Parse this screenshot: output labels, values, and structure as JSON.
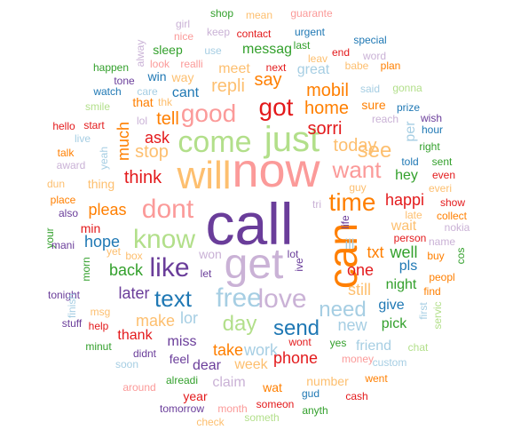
{
  "palette": {
    "purple": "#6a3d9a",
    "pink": "#fb9a99",
    "lilac": "#cab2d6",
    "orange": "#ff7f00",
    "lightorange": "#fdbf6f",
    "red": "#e31a1c",
    "green": "#33a02c",
    "lightgreen": "#b2df8a",
    "blue": "#1f78b4",
    "lightblue": "#a6cee3"
  },
  "words": [
    {
      "text": "call",
      "color": "purple"
    },
    {
      "text": "now",
      "color": "pink"
    },
    {
      "text": "get",
      "color": "lilac"
    },
    {
      "text": "can",
      "color": "orange"
    },
    {
      "text": "will",
      "color": "lightorange"
    },
    {
      "text": "just",
      "color": "lightgreen"
    },
    {
      "text": "come",
      "color": "lightgreen"
    },
    {
      "text": "free",
      "color": "lightblue"
    },
    {
      "text": "love",
      "color": "lilac"
    },
    {
      "text": "dont",
      "color": "pink"
    },
    {
      "text": "know",
      "color": "lightgreen"
    },
    {
      "text": "like",
      "color": "purple"
    },
    {
      "text": "good",
      "color": "pink"
    },
    {
      "text": "got",
      "color": "red"
    },
    {
      "text": "time",
      "color": "orange"
    },
    {
      "text": "want",
      "color": "pink"
    },
    {
      "text": "text",
      "color": "blue"
    },
    {
      "text": "day",
      "color": "lightgreen"
    },
    {
      "text": "send",
      "color": "blue"
    },
    {
      "text": "need",
      "color": "lightblue"
    },
    {
      "text": "see",
      "color": "lightorange"
    },
    {
      "text": "sorri",
      "color": "red"
    },
    {
      "text": "home",
      "color": "orange"
    },
    {
      "text": "mobil",
      "color": "orange"
    },
    {
      "text": "repli",
      "color": "lightorange"
    },
    {
      "text": "say",
      "color": "orange"
    },
    {
      "text": "today",
      "color": "lightorange"
    },
    {
      "text": "tell",
      "color": "orange"
    },
    {
      "text": "think",
      "color": "red"
    },
    {
      "text": "stop",
      "color": "lightorange"
    },
    {
      "text": "ask",
      "color": "red"
    },
    {
      "text": "much",
      "color": "orange"
    },
    {
      "text": "pleas",
      "color": "orange"
    },
    {
      "text": "hope",
      "color": "blue"
    },
    {
      "text": "back",
      "color": "green"
    },
    {
      "text": "later",
      "color": "purple"
    },
    {
      "text": "make",
      "color": "lightorange"
    },
    {
      "text": "lor",
      "color": "lightblue"
    },
    {
      "text": "take",
      "color": "orange"
    },
    {
      "text": "work",
      "color": "lightblue"
    },
    {
      "text": "phone",
      "color": "red"
    },
    {
      "text": "new",
      "color": "lightblue"
    },
    {
      "text": "still",
      "color": "lightorange"
    },
    {
      "text": "one",
      "color": "red"
    },
    {
      "text": "txt",
      "color": "orange"
    },
    {
      "text": "well",
      "color": "green"
    },
    {
      "text": "ill",
      "color": "lightblue"
    },
    {
      "text": "happi",
      "color": "red"
    },
    {
      "text": "hey",
      "color": "green"
    },
    {
      "text": "wait",
      "color": "lightorange"
    },
    {
      "text": "pls",
      "color": "blue"
    },
    {
      "text": "night",
      "color": "green"
    },
    {
      "text": "give",
      "color": "blue"
    },
    {
      "text": "pick",
      "color": "green"
    },
    {
      "text": "week",
      "color": "lightorange"
    },
    {
      "text": "miss",
      "color": "purple"
    },
    {
      "text": "thank",
      "color": "red"
    },
    {
      "text": "dear",
      "color": "purple"
    },
    {
      "text": "claim",
      "color": "lilac"
    },
    {
      "text": "wat",
      "color": "orange"
    },
    {
      "text": "number",
      "color": "lightorange"
    },
    {
      "text": "friend",
      "color": "lightblue"
    },
    {
      "text": "meet",
      "color": "lightorange"
    },
    {
      "text": "messag",
      "color": "green"
    },
    {
      "text": "great",
      "color": "lightblue"
    },
    {
      "text": "sleep",
      "color": "green"
    },
    {
      "text": "contact",
      "color": "red"
    },
    {
      "text": "keep",
      "color": "lilac"
    },
    {
      "text": "shop",
      "color": "green"
    },
    {
      "text": "mean",
      "color": "lightorange"
    },
    {
      "text": "guarante",
      "color": "pink"
    },
    {
      "text": "girl",
      "color": "lilac"
    },
    {
      "text": "nice",
      "color": "pink"
    },
    {
      "text": "use",
      "color": "lightblue"
    },
    {
      "text": "urgent",
      "color": "blue"
    },
    {
      "text": "last",
      "color": "green"
    },
    {
      "text": "special",
      "color": "blue"
    },
    {
      "text": "end",
      "color": "red"
    },
    {
      "text": "word",
      "color": "lilac"
    },
    {
      "text": "leav",
      "color": "lightorange"
    },
    {
      "text": "plan",
      "color": "orange"
    },
    {
      "text": "babe",
      "color": "lightorange"
    },
    {
      "text": "next",
      "color": "red"
    },
    {
      "text": "realli",
      "color": "pink"
    },
    {
      "text": "look",
      "color": "pink"
    },
    {
      "text": "way",
      "color": "lightorange"
    },
    {
      "text": "win",
      "color": "blue"
    },
    {
      "text": "happen",
      "color": "green"
    },
    {
      "text": "alway",
      "color": "lilac"
    },
    {
      "text": "tone",
      "color": "purple"
    },
    {
      "text": "watch",
      "color": "blue"
    },
    {
      "text": "care",
      "color": "lightblue"
    },
    {
      "text": "cant",
      "color": "blue"
    },
    {
      "text": "said",
      "color": "lightblue"
    },
    {
      "text": "gonna",
      "color": "lightgreen"
    },
    {
      "text": "smile",
      "color": "lightgreen"
    },
    {
      "text": "thk",
      "color": "lightorange"
    },
    {
      "text": "that",
      "color": "orange"
    },
    {
      "text": "lol",
      "color": "lilac"
    },
    {
      "text": "hello",
      "color": "red"
    },
    {
      "text": "start",
      "color": "red"
    },
    {
      "text": "live",
      "color": "lightblue"
    },
    {
      "text": "talk",
      "color": "orange"
    },
    {
      "text": "award",
      "color": "lilac"
    },
    {
      "text": "yeah",
      "color": "lightblue"
    },
    {
      "text": "dun",
      "color": "lightorange"
    },
    {
      "text": "thing",
      "color": "lightorange"
    },
    {
      "text": "place",
      "color": "orange"
    },
    {
      "text": "also",
      "color": "purple"
    },
    {
      "text": "min",
      "color": "red"
    },
    {
      "text": "your",
      "color": "green"
    },
    {
      "text": "mani",
      "color": "purple"
    },
    {
      "text": "morn",
      "color": "green"
    },
    {
      "text": "tonight",
      "color": "purple"
    },
    {
      "text": "stuff",
      "color": "purple"
    },
    {
      "text": "finish",
      "color": "lightblue"
    },
    {
      "text": "msg",
      "color": "lightorange"
    },
    {
      "text": "help",
      "color": "red"
    },
    {
      "text": "minut",
      "color": "green"
    },
    {
      "text": "box",
      "color": "lightorange"
    },
    {
      "text": "yet",
      "color": "lightorange"
    },
    {
      "text": "soon",
      "color": "lightblue"
    },
    {
      "text": "didnt",
      "color": "purple"
    },
    {
      "text": "around",
      "color": "pink"
    },
    {
      "text": "feel",
      "color": "purple"
    },
    {
      "text": "alreadi",
      "color": "green"
    },
    {
      "text": "year",
      "color": "red"
    },
    {
      "text": "tomorrow",
      "color": "purple"
    },
    {
      "text": "check",
      "color": "lightorange"
    },
    {
      "text": "month",
      "color": "pink"
    },
    {
      "text": "someth",
      "color": "lightgreen"
    },
    {
      "text": "someon",
      "color": "red"
    },
    {
      "text": "anyth",
      "color": "green"
    },
    {
      "text": "gud",
      "color": "blue"
    },
    {
      "text": "cash",
      "color": "red"
    },
    {
      "text": "went",
      "color": "orange"
    },
    {
      "text": "custom",
      "color": "lightblue"
    },
    {
      "text": "chat",
      "color": "lightgreen"
    },
    {
      "text": "money",
      "color": "pink"
    },
    {
      "text": "yes",
      "color": "green"
    },
    {
      "text": "wont",
      "color": "red"
    },
    {
      "text": "won",
      "color": "lilac"
    },
    {
      "text": "let",
      "color": "purple"
    },
    {
      "text": "lot",
      "color": "purple"
    },
    {
      "text": "ive",
      "color": "purple"
    },
    {
      "text": "tri",
      "color": "lilac"
    },
    {
      "text": "life",
      "color": "purple"
    },
    {
      "text": "guy",
      "color": "lightorange"
    },
    {
      "text": "reach",
      "color": "lilac"
    },
    {
      "text": "sure",
      "color": "orange"
    },
    {
      "text": "prize",
      "color": "blue"
    },
    {
      "text": "wish",
      "color": "purple"
    },
    {
      "text": "hour",
      "color": "blue"
    },
    {
      "text": "per",
      "color": "lightblue"
    },
    {
      "text": "right",
      "color": "green"
    },
    {
      "text": "sent",
      "color": "green"
    },
    {
      "text": "told",
      "color": "blue"
    },
    {
      "text": "even",
      "color": "red"
    },
    {
      "text": "everi",
      "color": "lightorange"
    },
    {
      "text": "show",
      "color": "red"
    },
    {
      "text": "collect",
      "color": "orange"
    },
    {
      "text": "late",
      "color": "lightorange"
    },
    {
      "text": "nokia",
      "color": "lilac"
    },
    {
      "text": "person",
      "color": "red"
    },
    {
      "text": "name",
      "color": "lilac"
    },
    {
      "text": "buy",
      "color": "orange"
    },
    {
      "text": "cos",
      "color": "green"
    },
    {
      "text": "peopl",
      "color": "orange"
    },
    {
      "text": "find",
      "color": "orange"
    },
    {
      "text": "first",
      "color": "lightblue"
    },
    {
      "text": "servic",
      "color": "lightgreen"
    },
    {
      "text": "wan",
      "color": "blue"
    }
  ]
}
